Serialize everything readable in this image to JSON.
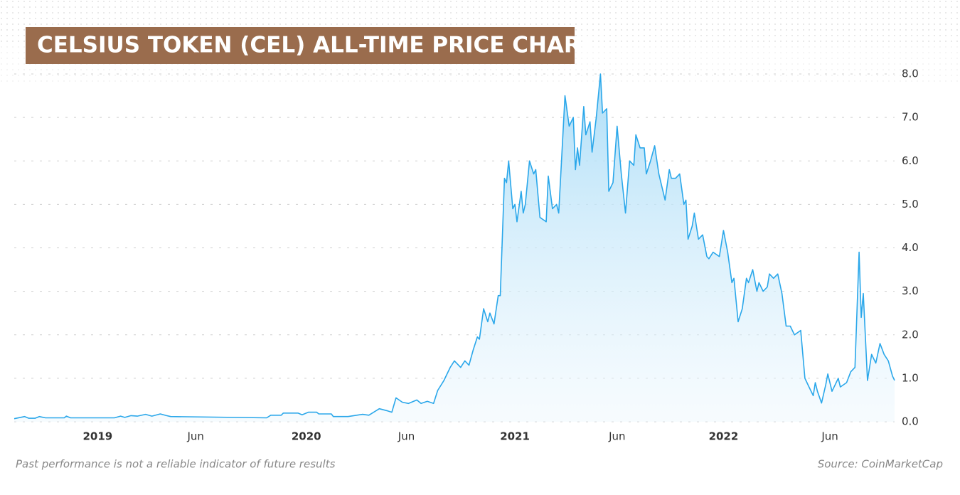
{
  "chart_data": {
    "type": "line",
    "title": "CELSIUS TOKEN (CEL) ALL-TIME PRICE CHART",
    "note": "Past performance is not a reliable indicator of future results",
    "source": "Source: CoinMarketCap",
    "color": "#2aa7ea",
    "grid": true,
    "xlim": [
      2018.6,
      2022.82
    ],
    "xticks": [
      2019,
      {
        "value": 2019.47,
        "label": "Jun"
      },
      2020,
      {
        "value": 2020.48,
        "label": "Jun"
      },
      2021,
      {
        "value": 2021.49,
        "label": "Jun"
      },
      2022,
      {
        "value": 2022.51,
        "label": "Jun"
      }
    ],
    "ylim": [
      0,
      8
    ],
    "yticks": [
      {
        "value": 0,
        "label": "0.0"
      },
      {
        "value": 1,
        "label": "1.0"
      },
      {
        "value": 2,
        "label": "2.0"
      },
      {
        "value": 3,
        "label": "3.0"
      },
      {
        "value": 4,
        "label": "4.0"
      },
      {
        "value": 5,
        "label": "5.0"
      },
      {
        "value": 6,
        "label": "6.0"
      },
      {
        "value": 7,
        "label": "7.0"
      },
      {
        "value": 8,
        "label": "8.0"
      }
    ],
    "x": [
      2018.6,
      2018.65,
      2018.67,
      2018.7,
      2018.72,
      2018.75,
      2018.84,
      2018.85,
      2018.87,
      2019.08,
      2019.11,
      2019.13,
      2019.16,
      2019.19,
      2019.23,
      2019.26,
      2019.3,
      2019.33,
      2019.35,
      2019.81,
      2019.83,
      2019.88,
      2019.89,
      2019.96,
      2019.98,
      2020.01,
      2020.05,
      2020.06,
      2020.12,
      2020.13,
      2020.2,
      2020.27,
      2020.3,
      2020.35,
      2020.39,
      2020.41,
      2020.43,
      2020.46,
      2020.49,
      2020.53,
      2020.55,
      2020.58,
      2020.61,
      2020.63,
      2020.66,
      2020.69,
      2020.71,
      2020.74,
      2020.76,
      2020.78,
      2020.8,
      2020.82,
      2020.83,
      2020.85,
      2020.87,
      2020.88,
      2020.9,
      2020.92,
      2020.93,
      2020.95,
      2020.96,
      2020.97,
      2020.99,
      2021.0,
      2021.01,
      2021.03,
      2021.04,
      2021.05,
      2021.07,
      2021.09,
      2021.1,
      2021.12,
      2021.15,
      2021.16,
      2021.18,
      2021.2,
      2021.21,
      2021.24,
      2021.26,
      2021.28,
      2021.29,
      2021.3,
      2021.31,
      2021.33,
      2021.34,
      2021.36,
      2021.37,
      2021.39,
      2021.41,
      2021.42,
      2021.44,
      2021.45,
      2021.47,
      2021.49,
      2021.51,
      2021.53,
      2021.55,
      2021.57,
      2021.58,
      2021.6,
      2021.62,
      2021.63,
      2021.65,
      2021.67,
      2021.69,
      2021.7,
      2021.72,
      2021.74,
      2021.75,
      2021.77,
      2021.79,
      2021.81,
      2021.82,
      2021.83,
      2021.85,
      2021.86,
      2021.88,
      2021.9,
      2021.92,
      2021.93,
      2021.95,
      2021.98,
      2022.0,
      2022.02,
      2022.04,
      2022.05,
      2022.07,
      2022.09,
      2022.11,
      2022.12,
      2022.14,
      2022.16,
      2022.17,
      2022.19,
      2022.21,
      2022.22,
      2022.24,
      2022.26,
      2022.28,
      2022.3,
      2022.32,
      2022.34,
      2022.37,
      2022.39,
      2022.41,
      2022.43,
      2022.44,
      2022.45,
      2022.47,
      2022.49,
      2022.5,
      2022.52,
      2022.55,
      2022.56,
      2022.59,
      2022.61,
      2022.63,
      2022.65,
      2022.66,
      2022.67,
      2022.69,
      2022.71,
      2022.73,
      2022.75,
      2022.77,
      2022.79,
      2022.81,
      2022.82
    ],
    "values": [
      0.07,
      0.12,
      0.08,
      0.08,
      0.12,
      0.09,
      0.09,
      0.13,
      0.09,
      0.09,
      0.13,
      0.1,
      0.14,
      0.13,
      0.17,
      0.13,
      0.18,
      0.14,
      0.12,
      0.09,
      0.15,
      0.15,
      0.2,
      0.2,
      0.16,
      0.22,
      0.22,
      0.18,
      0.18,
      0.12,
      0.12,
      0.17,
      0.15,
      0.3,
      0.25,
      0.22,
      0.55,
      0.45,
      0.42,
      0.5,
      0.42,
      0.47,
      0.42,
      0.72,
      0.95,
      1.25,
      1.4,
      1.25,
      1.4,
      1.3,
      1.65,
      1.95,
      1.9,
      2.6,
      2.3,
      2.5,
      2.25,
      2.9,
      2.9,
      5.6,
      5.5,
      6.0,
      4.9,
      5.0,
      4.6,
      5.3,
      4.8,
      5.0,
      6.0,
      5.7,
      5.8,
      4.7,
      4.6,
      5.65,
      4.9,
      5.0,
      4.8,
      7.5,
      6.8,
      7.0,
      5.8,
      6.3,
      5.9,
      7.25,
      6.6,
      6.9,
      6.2,
      7.0,
      8.0,
      7.1,
      7.2,
      5.3,
      5.5,
      6.8,
      5.7,
      4.8,
      6.0,
      5.9,
      6.6,
      6.3,
      6.3,
      5.7,
      6.0,
      6.35,
      5.7,
      5.5,
      5.1,
      5.8,
      5.6,
      5.6,
      5.7,
      5.0,
      5.1,
      4.2,
      4.5,
      4.8,
      4.2,
      4.3,
      3.8,
      3.75,
      3.9,
      3.8,
      4.4,
      3.9,
      3.2,
      3.3,
      2.3,
      2.6,
      3.3,
      3.2,
      3.5,
      3.0,
      3.2,
      3.0,
      3.1,
      3.4,
      3.3,
      3.4,
      2.95,
      2.2,
      2.2,
      2.0,
      2.1,
      1.0,
      0.8,
      0.6,
      0.9,
      0.7,
      0.43,
      0.85,
      1.1,
      0.7,
      1.0,
      0.8,
      0.9,
      1.15,
      1.25,
      3.9,
      2.4,
      2.95,
      0.95,
      1.55,
      1.35,
      1.8,
      1.55,
      1.4,
      1.05,
      0.95
    ]
  }
}
